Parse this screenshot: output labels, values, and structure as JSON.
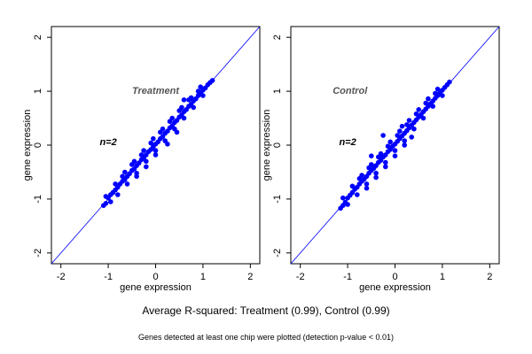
{
  "caption": {
    "main": "Average R-squared: Treatment (0.99), Control (0.99)",
    "note": "Genes detected at least one chip were plotted (detection p-value < 0.01)"
  },
  "chart_data": [
    {
      "type": "scatter",
      "panel_label": "Treatment",
      "annotation": "n=2",
      "xlabel": "gene expression",
      "ylabel": "gene expression",
      "xlim": [
        -2.2,
        2.2
      ],
      "ylim": [
        -2.2,
        2.2
      ],
      "xticks": [
        "-2",
        "-1",
        "0",
        "1",
        "2"
      ],
      "yticks": [
        "-2",
        "-1",
        "0",
        "1",
        "2"
      ],
      "grid": false,
      "point_color": "#0000ff",
      "reference_line": "y = x",
      "reference_line_color": "#0000ff",
      "points": [
        [
          -1.1,
          -1.12
        ],
        [
          -1.05,
          -1.08
        ],
        [
          -1.0,
          -0.98
        ],
        [
          -0.95,
          -0.92
        ],
        [
          -0.9,
          -0.88
        ],
        [
          -0.85,
          -0.83
        ],
        [
          -0.8,
          -0.78
        ],
        [
          -0.75,
          -0.72
        ],
        [
          -0.7,
          -0.67
        ],
        [
          -0.65,
          -0.64
        ],
        [
          -0.6,
          -0.58
        ],
        [
          -0.55,
          -0.53
        ],
        [
          -0.5,
          -0.47
        ],
        [
          -0.45,
          -0.44
        ],
        [
          -0.4,
          -0.38
        ],
        [
          -0.35,
          -0.33
        ],
        [
          -0.3,
          -0.27
        ],
        [
          -0.25,
          -0.24
        ],
        [
          -0.2,
          -0.18
        ],
        [
          -0.15,
          -0.12
        ],
        [
          -0.1,
          -0.08
        ],
        [
          -0.05,
          -0.03
        ],
        [
          0.0,
          0.02
        ],
        [
          0.05,
          0.06
        ],
        [
          0.1,
          0.12
        ],
        [
          0.15,
          0.16
        ],
        [
          0.2,
          0.22
        ],
        [
          0.25,
          0.26
        ],
        [
          0.3,
          0.32
        ],
        [
          0.35,
          0.36
        ],
        [
          0.4,
          0.42
        ],
        [
          0.45,
          0.46
        ],
        [
          0.5,
          0.52
        ],
        [
          0.55,
          0.56
        ],
        [
          0.6,
          0.62
        ],
        [
          0.65,
          0.66
        ],
        [
          0.7,
          0.72
        ],
        [
          0.75,
          0.76
        ],
        [
          0.8,
          0.82
        ],
        [
          0.85,
          0.86
        ],
        [
          0.9,
          0.92
        ],
        [
          0.95,
          0.96
        ],
        [
          1.0,
          1.02
        ],
        [
          1.05,
          1.06
        ],
        [
          1.1,
          1.12
        ],
        [
          1.15,
          1.16
        ],
        [
          1.2,
          1.2
        ],
        [
          -0.95,
          -1.05
        ],
        [
          -0.8,
          -0.92
        ],
        [
          -0.6,
          -0.72
        ],
        [
          -0.4,
          -0.52
        ],
        [
          -0.2,
          -0.3
        ],
        [
          0.0,
          -0.1
        ],
        [
          0.2,
          0.08
        ],
        [
          0.4,
          0.3
        ],
        [
          0.6,
          0.5
        ],
        [
          0.8,
          0.7
        ],
        [
          1.0,
          0.92
        ],
        [
          -1.05,
          -0.95
        ],
        [
          -0.85,
          -0.72
        ],
        [
          -0.65,
          -0.5
        ],
        [
          -0.45,
          -0.3
        ],
        [
          -0.25,
          -0.1
        ],
        [
          -0.05,
          0.12
        ],
        [
          0.15,
          0.3
        ],
        [
          0.35,
          0.5
        ],
        [
          0.55,
          0.7
        ],
        [
          0.75,
          0.88
        ],
        [
          0.95,
          1.08
        ],
        [
          -0.7,
          -0.58
        ],
        [
          -0.5,
          -0.36
        ],
        [
          -0.3,
          -0.18
        ],
        [
          -0.1,
          0.04
        ],
        [
          0.1,
          0.24
        ],
        [
          0.3,
          0.44
        ],
        [
          0.5,
          0.64
        ],
        [
          0.7,
          0.84
        ],
        [
          0.9,
          1.0
        ],
        [
          0.6,
          0.84
        ],
        [
          -0.4,
          -0.58
        ],
        [
          -0.2,
          -0.4
        ],
        [
          0.0,
          -0.18
        ],
        [
          0.25,
          0.02
        ],
        [
          0.45,
          0.24
        ]
      ]
    },
    {
      "type": "scatter",
      "panel_label": "Control",
      "annotation": "n=2",
      "xlabel": "gene expression",
      "ylabel": "gene expression",
      "xlim": [
        -2.2,
        2.2
      ],
      "ylim": [
        -2.2,
        2.2
      ],
      "xticks": [
        "-2",
        "-1",
        "0",
        "1",
        "2"
      ],
      "yticks": [
        "-2",
        "-1",
        "0",
        "1",
        "2"
      ],
      "grid": false,
      "point_color": "#0000ff",
      "reference_line": "y = x",
      "reference_line_color": "#0000ff",
      "points": [
        [
          -1.15,
          -1.17
        ],
        [
          -1.1,
          -1.12
        ],
        [
          -1.05,
          -1.06
        ],
        [
          -1.0,
          -0.98
        ],
        [
          -0.95,
          -0.93
        ],
        [
          -0.9,
          -0.88
        ],
        [
          -0.85,
          -0.82
        ],
        [
          -0.8,
          -0.78
        ],
        [
          -0.75,
          -0.72
        ],
        [
          -0.7,
          -0.67
        ],
        [
          -0.65,
          -0.63
        ],
        [
          -0.6,
          -0.58
        ],
        [
          -0.55,
          -0.52
        ],
        [
          -0.5,
          -0.47
        ],
        [
          -0.45,
          -0.43
        ],
        [
          -0.4,
          -0.38
        ],
        [
          -0.35,
          -0.32
        ],
        [
          -0.3,
          -0.28
        ],
        [
          -0.25,
          -0.22
        ],
        [
          -0.2,
          -0.18
        ],
        [
          -0.15,
          -0.12
        ],
        [
          -0.1,
          -0.08
        ],
        [
          -0.05,
          -0.02
        ],
        [
          0.0,
          0.02
        ],
        [
          0.05,
          0.07
        ],
        [
          0.1,
          0.12
        ],
        [
          0.15,
          0.17
        ],
        [
          0.2,
          0.22
        ],
        [
          0.25,
          0.27
        ],
        [
          0.3,
          0.32
        ],
        [
          0.35,
          0.37
        ],
        [
          0.4,
          0.42
        ],
        [
          0.45,
          0.47
        ],
        [
          0.5,
          0.52
        ],
        [
          0.55,
          0.57
        ],
        [
          0.6,
          0.62
        ],
        [
          0.65,
          0.67
        ],
        [
          0.7,
          0.72
        ],
        [
          0.75,
          0.77
        ],
        [
          0.8,
          0.82
        ],
        [
          0.85,
          0.87
        ],
        [
          0.9,
          0.92
        ],
        [
          0.95,
          0.97
        ],
        [
          1.0,
          1.02
        ],
        [
          1.05,
          1.07
        ],
        [
          1.1,
          1.12
        ],
        [
          1.15,
          1.17
        ],
        [
          -1.0,
          -1.1
        ],
        [
          -0.8,
          -0.92
        ],
        [
          -0.6,
          -0.72
        ],
        [
          -0.4,
          -0.52
        ],
        [
          -0.2,
          -0.32
        ],
        [
          0.0,
          -0.1
        ],
        [
          0.2,
          0.08
        ],
        [
          0.4,
          0.3
        ],
        [
          0.6,
          0.5
        ],
        [
          0.8,
          0.72
        ],
        [
          1.0,
          0.92
        ],
        [
          -1.1,
          -0.98
        ],
        [
          -0.9,
          -0.76
        ],
        [
          -0.7,
          -0.56
        ],
        [
          -0.5,
          -0.36
        ],
        [
          -0.3,
          -0.16
        ],
        [
          -0.1,
          0.06
        ],
        [
          0.1,
          0.26
        ],
        [
          0.3,
          0.46
        ],
        [
          0.5,
          0.66
        ],
        [
          0.7,
          0.86
        ],
        [
          0.9,
          1.04
        ],
        [
          -0.75,
          -0.62
        ],
        [
          -0.55,
          -0.42
        ],
        [
          -0.35,
          -0.22
        ],
        [
          -0.15,
          -0.02
        ],
        [
          0.05,
          0.18
        ],
        [
          0.25,
          0.38
        ],
        [
          0.45,
          0.58
        ],
        [
          0.65,
          0.78
        ],
        [
          0.85,
          0.96
        ],
        [
          -0.6,
          -0.8
        ],
        [
          -0.4,
          -0.6
        ],
        [
          -0.2,
          -0.4
        ],
        [
          0.0,
          -0.2
        ],
        [
          0.2,
          0.0
        ],
        [
          -0.25,
          0.18
        ],
        [
          0.15,
          0.35
        ],
        [
          -0.5,
          -0.2
        ],
        [
          0.35,
          0.15
        ]
      ]
    }
  ]
}
